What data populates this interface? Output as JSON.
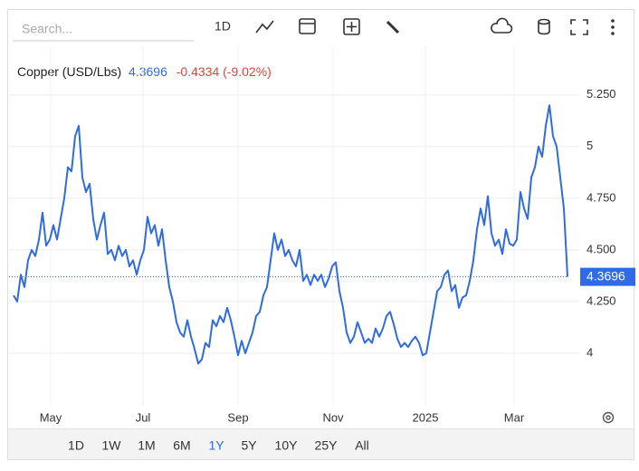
{
  "search_placeholder": "Search...",
  "interval": "1D",
  "chart_data": {
    "type": "line",
    "title": "Copper (USD/Lbs)",
    "change": "-0.4334 (-9.02%)",
    "color": "#2f6be6",
    "values": [
      4.28,
      4.25,
      4.38,
      4.32,
      4.45,
      4.5,
      4.47,
      4.55,
      4.68,
      4.52,
      4.55,
      4.62,
      4.55,
      4.65,
      4.75,
      4.9,
      4.88,
      5.05,
      5.1,
      4.85,
      4.78,
      4.82,
      4.65,
      4.55,
      4.62,
      4.68,
      4.48,
      4.5,
      4.45,
      4.52,
      4.47,
      4.5,
      4.42,
      4.45,
      4.38,
      4.45,
      4.5,
      4.66,
      4.58,
      4.62,
      4.52,
      4.6,
      4.45,
      4.32,
      4.25,
      4.15,
      4.1,
      4.08,
      4.16,
      4.08,
      4.02,
      3.95,
      3.97,
      4.05,
      4.03,
      4.16,
      4.13,
      4.18,
      4.15,
      4.22,
      4.16,
      4.08,
      3.99,
      4.06,
      4.0,
      4.05,
      4.1,
      4.18,
      4.2,
      4.28,
      4.32,
      4.45,
      4.58,
      4.5,
      4.55,
      4.47,
      4.5,
      4.45,
      4.42,
      4.5,
      4.35,
      4.38,
      4.33,
      4.38,
      4.35,
      4.38,
      4.32,
      4.36,
      4.42,
      4.44,
      4.3,
      4.22,
      4.1,
      4.05,
      4.08,
      4.15,
      4.1,
      4.05,
      4.07,
      4.05,
      4.12,
      4.08,
      4.12,
      4.18,
      4.2,
      4.14,
      4.07,
      4.03,
      4.05,
      4.03,
      4.06,
      4.08,
      4.05,
      3.99,
      4.0,
      4.1,
      4.2,
      4.3,
      4.32,
      4.38,
      4.4,
      4.3,
      4.33,
      4.22,
      4.27,
      4.28,
      4.35,
      4.45,
      4.6,
      4.7,
      4.62,
      4.76,
      4.58,
      4.52,
      4.55,
      4.48,
      4.6,
      4.53,
      4.52,
      4.55,
      4.78,
      4.7,
      4.65,
      4.85,
      4.9,
      5.0,
      4.95,
      5.1,
      5.2,
      5.05,
      5.0,
      4.85,
      4.7,
      4.3696
    ],
    "xlim": [
      -1.25,
      156.25
    ],
    "xticks": [
      {
        "value": 10.25,
        "label": "May"
      },
      {
        "value": 35.75,
        "label": "Jul"
      },
      {
        "value": 62,
        "label": "Sep"
      },
      {
        "value": 88.25,
        "label": "Nov"
      },
      {
        "value": 113.75,
        "label": "2025"
      },
      {
        "value": 138.25,
        "label": "Mar"
      }
    ],
    "ylim": [
      3.75,
      5.49
    ],
    "yticks": [
      4,
      {
        "value": 4.25,
        "label": "4.250"
      },
      {
        "value": 4.5,
        "label": "4.500"
      },
      {
        "value": 4.75,
        "label": "4.750"
      },
      5,
      {
        "value": 5.25,
        "label": "5.250"
      }
    ],
    "grid": true
  },
  "ranges": [
    "1D",
    "1W",
    "1M",
    "6M",
    "1Y",
    "5Y",
    "10Y",
    "25Y",
    "All"
  ],
  "active_range": "1Y"
}
